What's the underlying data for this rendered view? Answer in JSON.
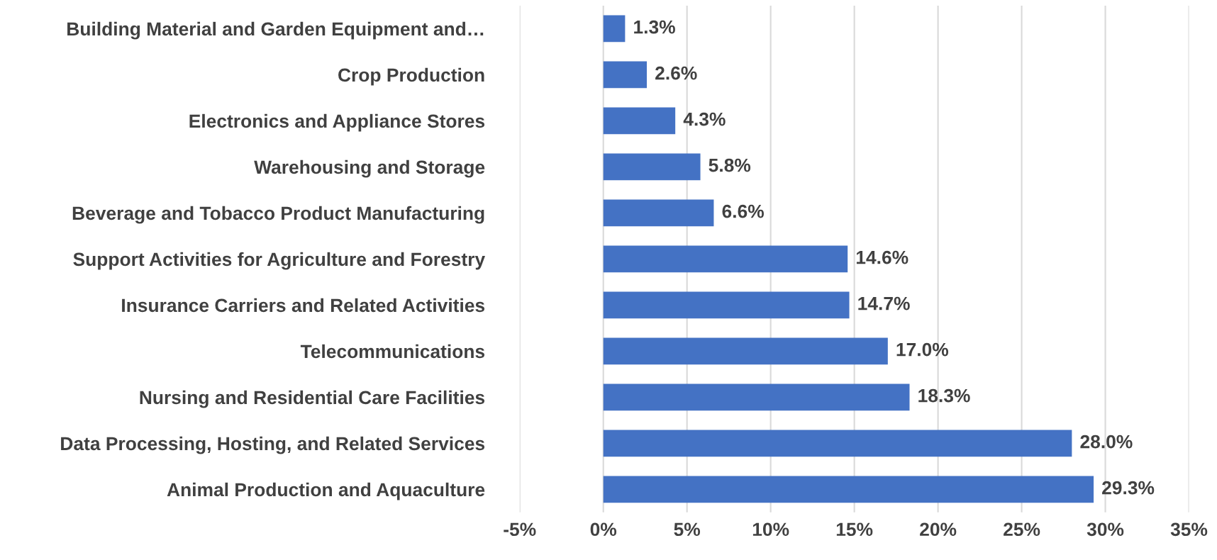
{
  "chart_data": {
    "type": "bar",
    "orientation": "horizontal",
    "color": "#4472c4",
    "categories": [
      "Building Material and Garden Equipment and…",
      "Crop Production",
      "Electronics and Appliance Stores",
      "Warehousing and Storage",
      "Beverage and Tobacco Product Manufacturing",
      "Support Activities for Agriculture and Forestry",
      "Insurance Carriers and Related Activities",
      "Telecommunications",
      "Nursing and Residential Care Facilities",
      "Data Processing, Hosting, and Related Services",
      "Animal Production and Aquaculture"
    ],
    "values": [
      1.3,
      2.6,
      4.3,
      5.8,
      6.6,
      14.6,
      14.7,
      17.0,
      18.3,
      28.0,
      29.3
    ],
    "value_labels": [
      "1.3%",
      "2.6%",
      "4.3%",
      "5.8%",
      "6.6%",
      "14.6%",
      "14.7%",
      "17.0%",
      "18.3%",
      "28.0%",
      "29.3%"
    ],
    "xlim": [
      -5,
      35
    ],
    "xticks": [
      {
        "value": -5,
        "label": "-5%"
      },
      {
        "value": 0,
        "label": "0%"
      },
      {
        "value": 5,
        "label": "5%"
      },
      {
        "value": 10,
        "label": "10%"
      },
      {
        "value": 15,
        "label": "15%"
      },
      {
        "value": 20,
        "label": "20%"
      },
      {
        "value": 25,
        "label": "25%"
      },
      {
        "value": 30,
        "label": "30%"
      },
      {
        "value": 35,
        "label": "35%"
      }
    ],
    "grid": "x",
    "legend": false
  }
}
